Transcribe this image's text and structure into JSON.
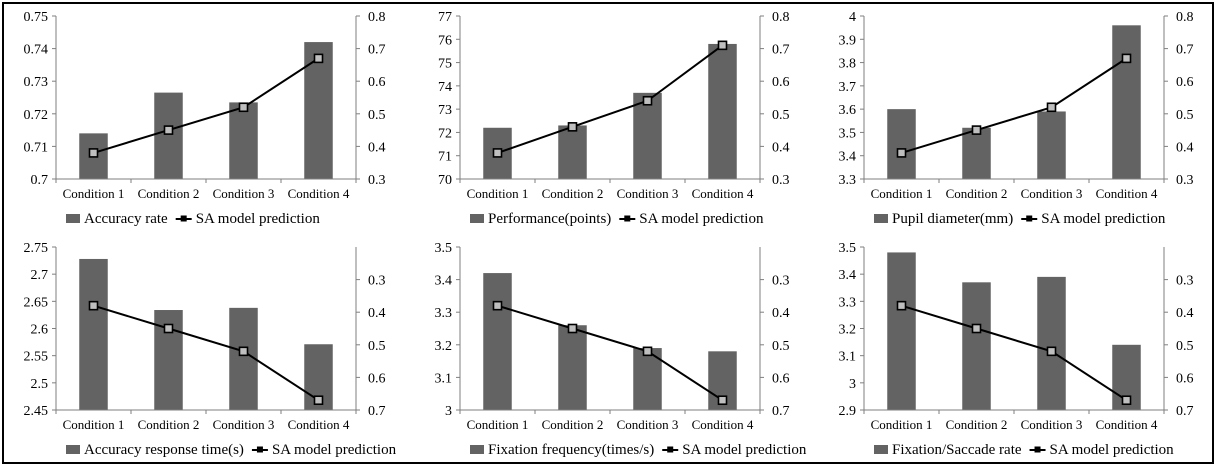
{
  "colors": {
    "bar": "#636363",
    "line": "#000000",
    "marker_fill": "#bfbfbf",
    "axis": "#7f7f7f",
    "text": "#000000"
  },
  "chart_data": [
    {
      "type": "bar",
      "categories": [
        "Condition 1",
        "Condition 2",
        "Condition 3",
        "Condition 4"
      ],
      "series": [
        {
          "name": "Accuracy rate",
          "type": "bar",
          "axis": "left",
          "values": [
            0.714,
            0.7265,
            0.7235,
            0.742
          ]
        },
        {
          "name": "SA model prediction",
          "type": "line",
          "axis": "right",
          "values": [
            0.38,
            0.45,
            0.52,
            0.67
          ]
        }
      ],
      "ylim": [
        0.7,
        0.75
      ],
      "yticks": [
        "0.7",
        "0.71",
        "0.72",
        "0.73",
        "0.74",
        "0.75"
      ],
      "y2lim": [
        0.3,
        0.8
      ],
      "y2ticks": [
        "0.3",
        "0.4",
        "0.5",
        "0.6",
        "0.7",
        "0.8"
      ],
      "y2_reversed": false,
      "legend_position": "bottom"
    },
    {
      "type": "bar",
      "categories": [
        "Condition 1",
        "Condition 2",
        "Condition 3",
        "Condition 4"
      ],
      "series": [
        {
          "name": "Performance(points)",
          "type": "bar",
          "axis": "left",
          "values": [
            72.2,
            72.3,
            73.7,
            75.8
          ]
        },
        {
          "name": "SA model prediction",
          "type": "line",
          "axis": "right",
          "values": [
            0.38,
            0.46,
            0.54,
            0.71
          ]
        }
      ],
      "ylim": [
        70,
        77
      ],
      "yticks": [
        "70",
        "71",
        "72",
        "73",
        "74",
        "75",
        "76",
        "77"
      ],
      "y2lim": [
        0.3,
        0.8
      ],
      "y2ticks": [
        "0.3",
        "0.4",
        "0.5",
        "0.6",
        "0.7",
        "0.8"
      ],
      "y2_reversed": false,
      "legend_position": "bottom"
    },
    {
      "type": "bar",
      "categories": [
        "Condition 1",
        "Condition 2",
        "Condition 3",
        "Condition 4"
      ],
      "series": [
        {
          "name": "Pupil diameter(mm)",
          "type": "bar",
          "axis": "left",
          "values": [
            3.6,
            3.52,
            3.59,
            3.96
          ]
        },
        {
          "name": "SA model prediction",
          "type": "line",
          "axis": "right",
          "values": [
            0.38,
            0.45,
            0.52,
            0.67
          ]
        }
      ],
      "ylim": [
        3.3,
        4
      ],
      "yticks": [
        "3.3",
        "3.4",
        "3.5",
        "3.6",
        "3.7",
        "3.8",
        "3.9",
        "4"
      ],
      "y2lim": [
        0.3,
        0.8
      ],
      "y2ticks": [
        "0.3",
        "0.4",
        "0.5",
        "0.6",
        "0.7",
        "0.8"
      ],
      "y2_reversed": false,
      "legend_position": "bottom"
    },
    {
      "type": "bar",
      "categories": [
        "Condition 1",
        "Condition 2",
        "Condition 3",
        "Condition 4"
      ],
      "series": [
        {
          "name": "Accuracy response time(s)",
          "type": "bar",
          "axis": "left",
          "values": [
            2.728,
            2.634,
            2.638,
            2.571
          ]
        },
        {
          "name": "SA model prediction",
          "type": "line",
          "axis": "right",
          "values": [
            0.38,
            0.45,
            0.52,
            0.67
          ]
        }
      ],
      "ylim": [
        2.45,
        2.75
      ],
      "yticks": [
        "2.45",
        "2.5",
        "2.55",
        "2.6",
        "2.65",
        "2.7",
        "2.75"
      ],
      "y2lim": [
        0.2,
        0.7
      ],
      "y2ticks": [
        "0.3",
        "0.4",
        "0.5",
        "0.6",
        "0.7"
      ],
      "y2_reversed": true,
      "legend_position": "bottom"
    },
    {
      "type": "bar",
      "categories": [
        "Condition 1",
        "Condition 2",
        "Condition 3",
        "Condition 4"
      ],
      "series": [
        {
          "name": "Fixation frequency(times/s)",
          "type": "bar",
          "axis": "left",
          "values": [
            3.42,
            3.26,
            3.19,
            3.18
          ]
        },
        {
          "name": "SA model prediction",
          "type": "line",
          "axis": "right",
          "values": [
            0.38,
            0.45,
            0.52,
            0.67
          ]
        }
      ],
      "ylim": [
        3,
        3.5
      ],
      "yticks": [
        "3",
        "3.1",
        "3.2",
        "3.3",
        "3.4",
        "3.5"
      ],
      "y2lim": [
        0.2,
        0.7
      ],
      "y2ticks": [
        "0.3",
        "0.4",
        "0.5",
        "0.6",
        "0.7"
      ],
      "y2_reversed": true,
      "legend_position": "bottom"
    },
    {
      "type": "bar",
      "categories": [
        "Condition 1",
        "Condition 2",
        "Condition 3",
        "Condition 4"
      ],
      "series": [
        {
          "name": "Fixation/Saccade rate",
          "type": "bar",
          "axis": "left",
          "values": [
            3.48,
            3.37,
            3.39,
            3.14
          ]
        },
        {
          "name": "SA model prediction",
          "type": "line",
          "axis": "right",
          "values": [
            0.38,
            0.45,
            0.52,
            0.67
          ]
        }
      ],
      "ylim": [
        2.9,
        3.5
      ],
      "yticks": [
        "2.9",
        "3",
        "3.1",
        "3.2",
        "3.3",
        "3.4",
        "3.5"
      ],
      "y2lim": [
        0.2,
        0.7
      ],
      "y2ticks": [
        "0.3",
        "0.4",
        "0.5",
        "0.6",
        "0.7"
      ],
      "y2_reversed": true,
      "legend_position": "bottom"
    }
  ]
}
